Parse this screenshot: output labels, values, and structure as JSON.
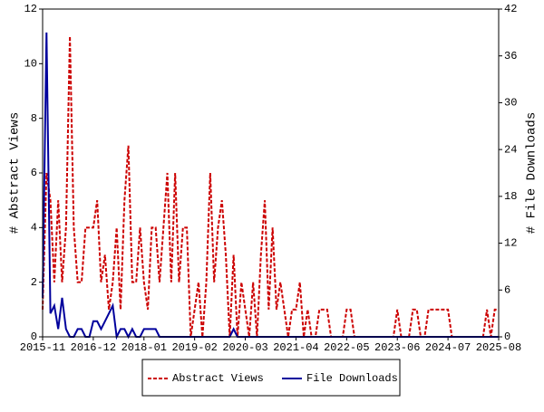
{
  "chart_data": {
    "type": "line",
    "y_label": "# Abstract Views",
    "y2_label": "# File Downloads",
    "x": [
      "2015-11",
      "2015-12",
      "2016-01",
      "2016-02",
      "2016-03",
      "2016-04",
      "2016-05",
      "2016-06",
      "2016-07",
      "2016-08",
      "2016-09",
      "2016-10",
      "2016-11",
      "2016-12",
      "2017-01",
      "2017-02",
      "2017-03",
      "2017-04",
      "2017-05",
      "2017-06",
      "2017-07",
      "2017-08",
      "2017-09",
      "2017-10",
      "2017-11",
      "2017-12",
      "2018-01",
      "2018-02",
      "2018-03",
      "2018-04",
      "2018-05",
      "2018-06",
      "2018-07",
      "2018-08",
      "2018-09",
      "2018-10",
      "2018-11",
      "2018-12",
      "2019-01",
      "2019-02",
      "2019-03",
      "2019-04",
      "2019-05",
      "2019-06",
      "2019-07",
      "2019-08",
      "2019-09",
      "2019-10",
      "2019-11",
      "2019-12",
      "2020-01",
      "2020-02",
      "2020-03",
      "2020-04",
      "2020-05",
      "2020-06",
      "2020-07",
      "2020-08",
      "2020-09",
      "2020-10",
      "2020-11",
      "2020-12",
      "2021-01",
      "2021-02",
      "2021-03",
      "2021-04",
      "2021-05",
      "2021-06",
      "2021-07",
      "2021-08",
      "2021-09",
      "2021-10",
      "2021-11",
      "2021-12",
      "2022-01",
      "2022-02",
      "2022-03",
      "2022-04",
      "2022-05",
      "2022-06",
      "2022-07",
      "2022-08",
      "2022-09",
      "2022-10",
      "2022-11",
      "2022-12",
      "2023-01",
      "2023-02",
      "2023-03",
      "2023-04",
      "2023-05",
      "2023-06",
      "2023-07",
      "2023-08",
      "2023-09",
      "2023-10",
      "2023-11",
      "2023-12",
      "2024-01",
      "2024-02",
      "2024-03",
      "2024-04",
      "2024-05",
      "2024-06",
      "2024-07",
      "2024-08",
      "2024-09",
      "2024-10",
      "2024-11",
      "2024-12",
      "2025-01",
      "2025-02",
      "2025-03",
      "2025-04",
      "2025-05",
      "2025-06",
      "2025-07",
      "2025-08"
    ],
    "series": [
      {
        "name": "Abstract Views",
        "color": "#cc0000",
        "dashed": true,
        "values": [
          1,
          6,
          5,
          2,
          5,
          2,
          4,
          11,
          4,
          2,
          2,
          4,
          4,
          4,
          5,
          2,
          3,
          1,
          2,
          4,
          1,
          5,
          7,
          2,
          2,
          4,
          2,
          1,
          4,
          4,
          2,
          4,
          6,
          2,
          6,
          2,
          4,
          4,
          0,
          1,
          2,
          0,
          2,
          6,
          2,
          4,
          5,
          3,
          0,
          3,
          0,
          2,
          1,
          0,
          2,
          0,
          3,
          5,
          1,
          4,
          1,
          2,
          1,
          0,
          1,
          1,
          2,
          0,
          1,
          0,
          0,
          1,
          1,
          1,
          0,
          0,
          0,
          0,
          1,
          1,
          0,
          0,
          0,
          0,
          0,
          0,
          0,
          0,
          0,
          0,
          0,
          1,
          0,
          0,
          0,
          1,
          1,
          0,
          0,
          1,
          1,
          1,
          1,
          1,
          1,
          0,
          0,
          0,
          0,
          0,
          0,
          0,
          0,
          0,
          1,
          0,
          1,
          1
        ]
      },
      {
        "name": "File Downloads",
        "color": "#00009c",
        "dashed": false,
        "axis": "y2",
        "values": [
          5,
          39,
          3,
          4,
          1,
          5,
          1,
          0,
          0,
          1,
          1,
          0,
          0,
          2,
          2,
          1,
          2,
          3,
          4,
          0,
          1,
          1,
          0,
          1,
          0,
          0,
          1,
          1,
          1,
          1,
          0,
          0,
          0,
          0,
          0,
          0,
          0,
          0,
          0,
          0,
          0,
          0,
          0,
          0,
          0,
          0,
          0,
          0,
          0,
          1,
          0,
          0,
          0,
          0,
          0,
          0,
          0,
          0,
          0,
          0,
          0,
          0,
          0,
          0,
          0,
          0,
          0,
          0,
          0,
          0,
          0,
          0,
          0,
          0,
          0,
          0,
          0,
          0,
          0,
          0,
          0,
          0,
          0,
          0,
          0,
          0,
          0,
          0,
          0,
          0,
          0,
          0,
          0,
          0,
          0,
          0,
          0,
          0,
          0,
          0,
          0,
          0,
          0,
          0,
          0,
          0,
          0,
          0,
          0,
          0,
          0,
          0,
          0,
          0,
          0,
          0,
          0,
          0
        ]
      }
    ],
    "xlim": [
      "2015-11",
      "2025-08"
    ],
    "xticks": [
      "2015-11",
      "2016-12",
      "2018-01",
      "2019-02",
      "2020-03",
      "2021-04",
      "2022-05",
      "2023-06",
      "2024-07",
      "2025-08"
    ],
    "ylim": [
      0,
      12
    ],
    "yticks": [
      0,
      2,
      4,
      6,
      8,
      10,
      12
    ],
    "y2lim": [
      0,
      42
    ],
    "y2ticks": [
      0,
      6,
      12,
      18,
      24,
      30,
      36,
      42
    ],
    "legend": "bottom"
  }
}
